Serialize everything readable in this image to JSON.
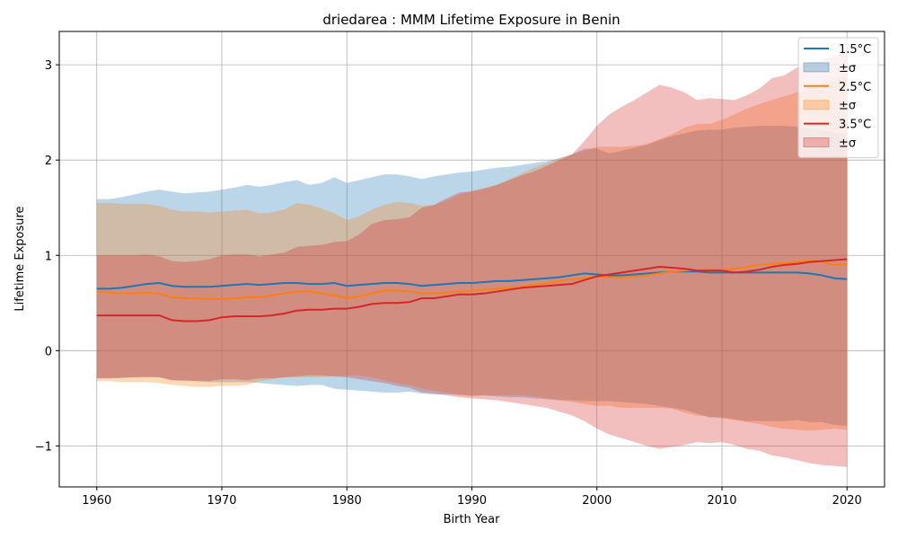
{
  "chart_data": {
    "type": "line",
    "title": "driedarea : MMM Lifetime Exposure in Benin",
    "xlabel": "Birth Year",
    "ylabel": "Lifetime Exposure",
    "xlim": [
      1957,
      2023
    ],
    "ylim": [
      -1.43,
      3.35
    ],
    "xticks": [
      1960,
      1970,
      1980,
      1990,
      2000,
      2010,
      2020
    ],
    "xtick_labels": [
      "1960",
      "1970",
      "1980",
      "1990",
      "2000",
      "2010",
      "2020"
    ],
    "yticks": [
      -1,
      0,
      1,
      2,
      3
    ],
    "ytick_labels": [
      "−1",
      "0",
      "1",
      "2",
      "3"
    ],
    "grid": true,
    "legend_position": "top-right",
    "x": [
      1960,
      1961,
      1962,
      1963,
      1964,
      1965,
      1966,
      1967,
      1968,
      1969,
      1970,
      1971,
      1972,
      1973,
      1974,
      1975,
      1976,
      1977,
      1978,
      1979,
      1980,
      1981,
      1982,
      1983,
      1984,
      1985,
      1986,
      1987,
      1988,
      1989,
      1990,
      1991,
      1992,
      1993,
      1994,
      1995,
      1996,
      1997,
      1998,
      1999,
      2000,
      2001,
      2002,
      2003,
      2004,
      2005,
      2006,
      2007,
      2008,
      2009,
      2010,
      2011,
      2012,
      2013,
      2014,
      2015,
      2016,
      2017,
      2018,
      2019,
      2020
    ],
    "series": [
      {
        "name": "1.5°C",
        "band_name": "±σ",
        "color": "#1f77b4",
        "band_color": "#1f77b4",
        "values": [
          0.65,
          0.65,
          0.66,
          0.68,
          0.7,
          0.71,
          0.68,
          0.67,
          0.67,
          0.67,
          0.68,
          0.69,
          0.7,
          0.69,
          0.7,
          0.71,
          0.71,
          0.7,
          0.7,
          0.71,
          0.68,
          0.69,
          0.7,
          0.71,
          0.71,
          0.7,
          0.68,
          0.69,
          0.7,
          0.71,
          0.71,
          0.72,
          0.73,
          0.73,
          0.74,
          0.75,
          0.76,
          0.77,
          0.79,
          0.81,
          0.8,
          0.79,
          0.79,
          0.8,
          0.81,
          0.82,
          0.83,
          0.83,
          0.83,
          0.82,
          0.82,
          0.82,
          0.82,
          0.82,
          0.82,
          0.82,
          0.82,
          0.81,
          0.79,
          0.76,
          0.75
        ],
        "upper": [
          1.59,
          1.59,
          1.61,
          1.64,
          1.67,
          1.69,
          1.67,
          1.65,
          1.66,
          1.67,
          1.69,
          1.71,
          1.74,
          1.72,
          1.74,
          1.77,
          1.79,
          1.74,
          1.76,
          1.82,
          1.76,
          1.79,
          1.82,
          1.85,
          1.85,
          1.83,
          1.8,
          1.83,
          1.85,
          1.87,
          1.88,
          1.9,
          1.92,
          1.93,
          1.95,
          1.97,
          1.99,
          2.02,
          2.06,
          2.12,
          2.12,
          2.07,
          2.1,
          2.13,
          2.16,
          2.21,
          2.25,
          2.28,
          2.31,
          2.32,
          2.32,
          2.34,
          2.35,
          2.36,
          2.36,
          2.36,
          2.35,
          2.33,
          2.31,
          2.29,
          2.28
        ],
        "lower": [
          -0.29,
          -0.29,
          -0.29,
          -0.28,
          -0.27,
          -0.28,
          -0.31,
          -0.32,
          -0.32,
          -0.33,
          -0.33,
          -0.33,
          -0.33,
          -0.34,
          -0.35,
          -0.36,
          -0.37,
          -0.36,
          -0.36,
          -0.4,
          -0.41,
          -0.42,
          -0.43,
          -0.44,
          -0.44,
          -0.43,
          -0.45,
          -0.46,
          -0.46,
          -0.46,
          -0.47,
          -0.47,
          -0.48,
          -0.49,
          -0.49,
          -0.5,
          -0.51,
          -0.52,
          -0.52,
          -0.53,
          -0.53,
          -0.53,
          -0.54,
          -0.55,
          -0.56,
          -0.58,
          -0.6,
          -0.62,
          -0.66,
          -0.7,
          -0.7,
          -0.72,
          -0.74,
          -0.74,
          -0.74,
          -0.74,
          -0.73,
          -0.75,
          -0.75,
          -0.78,
          -0.79
        ]
      },
      {
        "name": "2.5°C",
        "band_name": "±σ",
        "color": "#ff7f0e",
        "band_color": "#ff7f0e",
        "values": [
          0.62,
          0.61,
          0.6,
          0.6,
          0.61,
          0.6,
          0.56,
          0.55,
          0.55,
          0.54,
          0.54,
          0.55,
          0.56,
          0.56,
          0.58,
          0.6,
          0.62,
          0.62,
          0.6,
          0.58,
          0.55,
          0.57,
          0.6,
          0.63,
          0.63,
          0.62,
          0.6,
          0.6,
          0.61,
          0.62,
          0.63,
          0.64,
          0.65,
          0.66,
          0.67,
          0.69,
          0.71,
          0.73,
          0.75,
          0.76,
          0.78,
          0.77,
          0.77,
          0.78,
          0.79,
          0.81,
          0.83,
          0.84,
          0.85,
          0.85,
          0.85,
          0.86,
          0.88,
          0.9,
          0.91,
          0.92,
          0.93,
          0.94,
          0.93,
          0.9,
          0.91
        ],
        "upper": [
          1.55,
          1.55,
          1.54,
          1.54,
          1.54,
          1.52,
          1.48,
          1.46,
          1.46,
          1.45,
          1.46,
          1.47,
          1.48,
          1.44,
          1.45,
          1.48,
          1.55,
          1.53,
          1.49,
          1.44,
          1.37,
          1.41,
          1.48,
          1.53,
          1.56,
          1.55,
          1.52,
          1.53,
          1.58,
          1.64,
          1.68,
          1.71,
          1.74,
          1.8,
          1.86,
          1.92,
          1.97,
          2.02,
          2.06,
          2.1,
          2.14,
          2.14,
          2.14,
          2.15,
          2.17,
          2.22,
          2.27,
          2.34,
          2.38,
          2.38,
          2.42,
          2.48,
          2.54,
          2.59,
          2.63,
          2.67,
          2.71,
          2.75,
          2.8,
          2.85,
          2.9
        ],
        "lower": [
          -0.32,
          -0.32,
          -0.33,
          -0.33,
          -0.33,
          -0.34,
          -0.36,
          -0.37,
          -0.38,
          -0.38,
          -0.37,
          -0.37,
          -0.36,
          -0.32,
          -0.3,
          -0.28,
          -0.28,
          -0.28,
          -0.28,
          -0.27,
          -0.26,
          -0.26,
          -0.28,
          -0.31,
          -0.34,
          -0.36,
          -0.4,
          -0.42,
          -0.44,
          -0.47,
          -0.48,
          -0.47,
          -0.47,
          -0.47,
          -0.47,
          -0.48,
          -0.5,
          -0.52,
          -0.54,
          -0.56,
          -0.58,
          -0.58,
          -0.6,
          -0.6,
          -0.6,
          -0.6,
          -0.61,
          -0.65,
          -0.68,
          -0.69,
          -0.71,
          -0.73,
          -0.75,
          -0.77,
          -0.8,
          -0.82,
          -0.83,
          -0.84,
          -0.83,
          -0.82,
          -0.83
        ]
      },
      {
        "name": "3.5°C",
        "band_name": "±σ",
        "color": "#d62728",
        "band_color": "#d62728",
        "values": [
          0.37,
          0.37,
          0.37,
          0.37,
          0.37,
          0.37,
          0.32,
          0.31,
          0.31,
          0.32,
          0.35,
          0.36,
          0.36,
          0.36,
          0.37,
          0.39,
          0.42,
          0.43,
          0.43,
          0.44,
          0.44,
          0.46,
          0.49,
          0.5,
          0.5,
          0.51,
          0.55,
          0.55,
          0.57,
          0.59,
          0.59,
          0.6,
          0.62,
          0.64,
          0.66,
          0.67,
          0.68,
          0.69,
          0.7,
          0.74,
          0.78,
          0.8,
          0.82,
          0.84,
          0.86,
          0.88,
          0.87,
          0.86,
          0.84,
          0.84,
          0.84,
          0.82,
          0.83,
          0.85,
          0.88,
          0.9,
          0.91,
          0.93,
          0.94,
          0.95,
          0.96
        ],
        "upper": [
          1.0,
          1.0,
          1.0,
          1.0,
          1.01,
          0.99,
          0.94,
          0.93,
          0.94,
          0.96,
          1.0,
          1.01,
          1.01,
          0.99,
          1.01,
          1.03,
          1.09,
          1.1,
          1.11,
          1.14,
          1.15,
          1.22,
          1.33,
          1.37,
          1.38,
          1.4,
          1.5,
          1.53,
          1.6,
          1.66,
          1.67,
          1.7,
          1.74,
          1.79,
          1.84,
          1.88,
          1.94,
          2.0,
          2.06,
          2.2,
          2.36,
          2.48,
          2.56,
          2.63,
          2.71,
          2.79,
          2.76,
          2.71,
          2.63,
          2.65,
          2.64,
          2.63,
          2.68,
          2.75,
          2.86,
          2.89,
          2.97,
          3.02,
          3.05,
          3.09,
          3.13
        ],
        "lower": [
          -0.29,
          -0.29,
          -0.28,
          -0.28,
          -0.28,
          -0.28,
          -0.31,
          -0.31,
          -0.32,
          -0.32,
          -0.3,
          -0.3,
          -0.31,
          -0.29,
          -0.29,
          -0.28,
          -0.27,
          -0.26,
          -0.26,
          -0.27,
          -0.28,
          -0.3,
          -0.32,
          -0.34,
          -0.37,
          -0.39,
          -0.44,
          -0.45,
          -0.47,
          -0.49,
          -0.5,
          -0.51,
          -0.52,
          -0.54,
          -0.56,
          -0.58,
          -0.6,
          -0.64,
          -0.68,
          -0.74,
          -0.82,
          -0.88,
          -0.92,
          -0.96,
          -1.0,
          -1.03,
          -1.01,
          -0.99,
          -0.96,
          -0.97,
          -0.96,
          -0.99,
          -1.03,
          -1.05,
          -1.1,
          -1.12,
          -1.15,
          -1.18,
          -1.2,
          -1.21,
          -1.22
        ]
      }
    ]
  }
}
